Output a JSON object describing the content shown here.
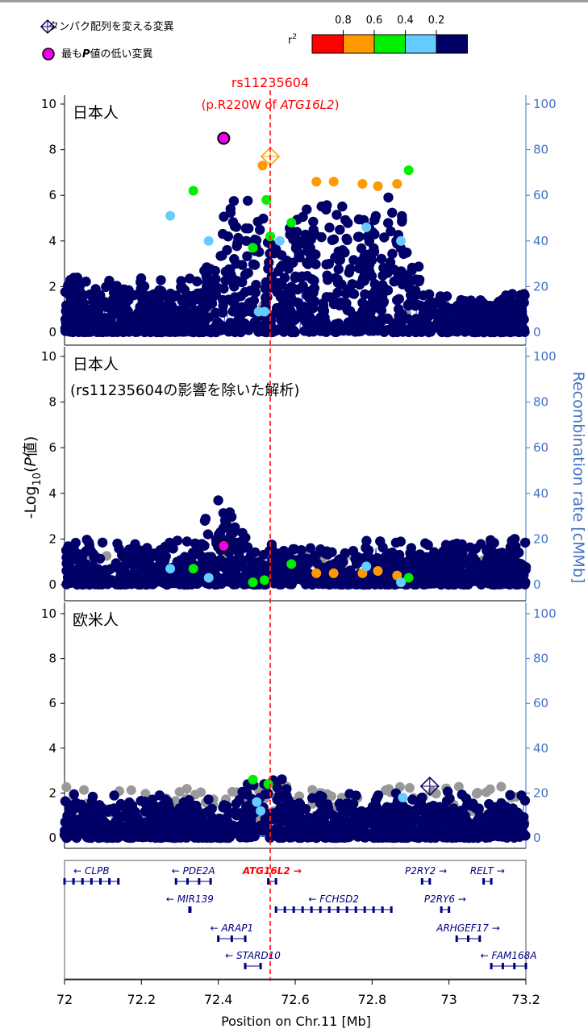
{
  "legend": {
    "coding_label": "タンパク配列を変える変異",
    "lead_label_pre": "最も",
    "lead_label_p": "P",
    "lead_label_post": "値の低い変異",
    "r2_label_base": "r",
    "r2_label_sup": "2",
    "r2_ticks": [
      "0.8",
      "0.6",
      "0.4",
      "0.2"
    ],
    "r2_colors": [
      "#ff0000",
      "#ff9900",
      "#00ee00",
      "#66ccff",
      "#000066"
    ]
  },
  "colors": {
    "navy": "#000066",
    "lead": "#ee00ee",
    "grey": "#999999",
    "highlight": "#ff0000",
    "axis": "#000000",
    "rate_axis": "#4472c4",
    "recomb_line": "#3333cc",
    "gene": "#000080",
    "gene_highlight": "#ff0000"
  },
  "snp": {
    "name": "rs11235604",
    "annotation_pre": "(p.R220W of ",
    "annotation_gene": "ATG16L2",
    "annotation_post": ")",
    "position_mb": 72.535
  },
  "axes": {
    "y_label_pre": "-Log",
    "y_label_sub": "10",
    "y_label_paren": "(",
    "y_label_p": "P",
    "y_label_post": "値)",
    "y2_label": "Recombination rate [cMMb]",
    "x_label": "Position on Chr.11 [Mb]",
    "x_ticks": [
      "72",
      "72.2",
      "72.4",
      "72.6",
      "72.8",
      "73",
      "73.2"
    ],
    "x_range": [
      72.0,
      73.2
    ]
  },
  "chart_data": [
    {
      "type": "scatter",
      "panel": "日本人",
      "title": "日本人",
      "title_line2": "",
      "ylim": [
        0,
        10
      ],
      "y_ticks": [
        "0",
        "2",
        "4",
        "6",
        "8",
        "10"
      ],
      "y2lim": [
        0,
        100
      ],
      "y2_ticks": [
        "0",
        "20",
        "40",
        "60",
        "80",
        "100"
      ],
      "highlighted_points": [
        {
          "x": 72.414,
          "y": 8.5,
          "class": "lead"
        },
        {
          "x": 72.535,
          "y": 7.7,
          "class": "coding",
          "r2": "0.6-0.8"
        },
        {
          "x": 72.515,
          "y": 7.3,
          "r2": "0.6-0.8"
        },
        {
          "x": 72.655,
          "y": 6.6,
          "r2": "0.6-0.8"
        },
        {
          "x": 72.7,
          "y": 6.6,
          "r2": "0.6-0.8"
        },
        {
          "x": 72.775,
          "y": 6.5,
          "r2": "0.6-0.8"
        },
        {
          "x": 72.815,
          "y": 6.4,
          "r2": "0.6-0.8"
        },
        {
          "x": 72.865,
          "y": 6.5,
          "r2": "0.6-0.8"
        },
        {
          "x": 72.335,
          "y": 6.2,
          "r2": "0.4-0.6"
        },
        {
          "x": 72.525,
          "y": 5.8,
          "r2": "0.4-0.6"
        },
        {
          "x": 72.895,
          "y": 7.1,
          "r2": "0.4-0.6"
        },
        {
          "x": 72.59,
          "y": 4.8,
          "r2": "0.4-0.6"
        },
        {
          "x": 72.535,
          "y": 4.2,
          "r2": "0.4-0.6"
        },
        {
          "x": 72.49,
          "y": 3.7,
          "r2": "0.4-0.6"
        },
        {
          "x": 72.275,
          "y": 5.1,
          "r2": "0.2-0.4"
        },
        {
          "x": 72.375,
          "y": 4.0,
          "r2": "0.2-0.4"
        },
        {
          "x": 72.56,
          "y": 4.0,
          "r2": "0.2-0.4"
        },
        {
          "x": 72.785,
          "y": 4.6,
          "r2": "0.2-0.4"
        },
        {
          "x": 72.875,
          "y": 4.0,
          "r2": "0.2-0.4"
        },
        {
          "x": 72.505,
          "y": 0.9,
          "r2": "0.2-0.4"
        },
        {
          "x": 72.52,
          "y": 0.9,
          "r2": "0.2-0.4"
        }
      ]
    },
    {
      "type": "scatter",
      "panel": "日本人(rs11235604の影響を除いた解析)",
      "title": "日本人",
      "title_line2": "(rs11235604の影響を除いた解析)",
      "ylim": [
        0,
        10
      ],
      "y_ticks": [
        "0",
        "2",
        "4",
        "6",
        "8",
        "10"
      ],
      "y2lim": [
        0,
        100
      ],
      "y2_ticks": [
        "0",
        "20",
        "40",
        "60",
        "80",
        "100"
      ],
      "highlighted_points": [
        {
          "x": 72.414,
          "y": 1.7,
          "class": "lead"
        },
        {
          "x": 72.535,
          "y": 0.4,
          "class": "coding"
        },
        {
          "x": 72.275,
          "y": 0.7,
          "r2": "0.2-0.4"
        },
        {
          "x": 72.335,
          "y": 0.7,
          "r2": "0.4-0.6"
        },
        {
          "x": 72.375,
          "y": 0.3,
          "r2": "0.2-0.4"
        },
        {
          "x": 72.49,
          "y": 0.1,
          "r2": "0.4-0.6"
        },
        {
          "x": 72.52,
          "y": 0.2,
          "r2": "0.4-0.6"
        },
        {
          "x": 72.59,
          "y": 0.9,
          "r2": "0.4-0.6"
        },
        {
          "x": 72.655,
          "y": 0.5,
          "r2": "0.6-0.8"
        },
        {
          "x": 72.7,
          "y": 0.5,
          "r2": "0.6-0.8"
        },
        {
          "x": 72.775,
          "y": 0.5,
          "r2": "0.6-0.8"
        },
        {
          "x": 72.815,
          "y": 0.6,
          "r2": "0.6-0.8"
        },
        {
          "x": 72.865,
          "y": 0.4,
          "r2": "0.6-0.8"
        },
        {
          "x": 72.895,
          "y": 0.3,
          "r2": "0.4-0.6"
        },
        {
          "x": 72.785,
          "y": 0.8,
          "r2": "0.2-0.4"
        },
        {
          "x": 72.875,
          "y": 0.1,
          "r2": "0.2-0.4"
        }
      ]
    },
    {
      "type": "scatter",
      "panel": "欧米人",
      "title": "欧米人",
      "title_line2": "",
      "ylim": [
        0,
        10
      ],
      "y_ticks": [
        "0",
        "2",
        "4",
        "6",
        "8",
        "10"
      ],
      "y2lim": [
        0,
        100
      ],
      "y2_ticks": [
        "0",
        "20",
        "40",
        "60",
        "80",
        "100"
      ],
      "highlighted_points": [
        {
          "x": 72.95,
          "y": 2.3,
          "class": "coding"
        },
        {
          "x": 72.49,
          "y": 2.6,
          "r2": "0.4-0.6"
        },
        {
          "x": 72.53,
          "y": 2.4,
          "r2": "0.4-0.6"
        },
        {
          "x": 72.5,
          "y": 1.6,
          "r2": "0.2-0.4"
        },
        {
          "x": 72.51,
          "y": 1.2,
          "r2": "0.2-0.4"
        },
        {
          "x": 72.88,
          "y": 1.8,
          "r2": "0.2-0.4"
        }
      ]
    }
  ],
  "genes": [
    {
      "name": "CLPB",
      "start": 72.0,
      "end": 72.14,
      "strand": "-",
      "row": 0
    },
    {
      "name": "PDE2A",
      "start": 72.29,
      "end": 72.38,
      "strand": "-",
      "row": 0
    },
    {
      "name": "ATG16L2",
      "start": 72.53,
      "end": 72.55,
      "strand": "+",
      "row": 0,
      "highlight": true
    },
    {
      "name": "P2RY2",
      "start": 72.93,
      "end": 72.95,
      "strand": "+",
      "row": 0
    },
    {
      "name": "RELT",
      "start": 73.09,
      "end": 73.11,
      "strand": "+",
      "row": 0
    },
    {
      "name": "MIR139",
      "start": 72.325,
      "end": 72.327,
      "strand": "-",
      "row": 1
    },
    {
      "name": "FCHSD2",
      "start": 72.55,
      "end": 72.85,
      "strand": "-",
      "row": 1
    },
    {
      "name": "P2RY6",
      "start": 72.98,
      "end": 73.0,
      "strand": "+",
      "row": 1
    },
    {
      "name": "ARAP1",
      "start": 72.4,
      "end": 72.47,
      "strand": "-",
      "row": 2
    },
    {
      "name": "ARHGEF17",
      "start": 73.02,
      "end": 73.08,
      "strand": "+",
      "row": 2
    },
    {
      "name": "STARD10",
      "start": 72.47,
      "end": 72.51,
      "strand": "-",
      "row": 3
    },
    {
      "name": "FAM168A",
      "start": 73.11,
      "end": 73.2,
      "strand": "-",
      "row": 3
    }
  ]
}
